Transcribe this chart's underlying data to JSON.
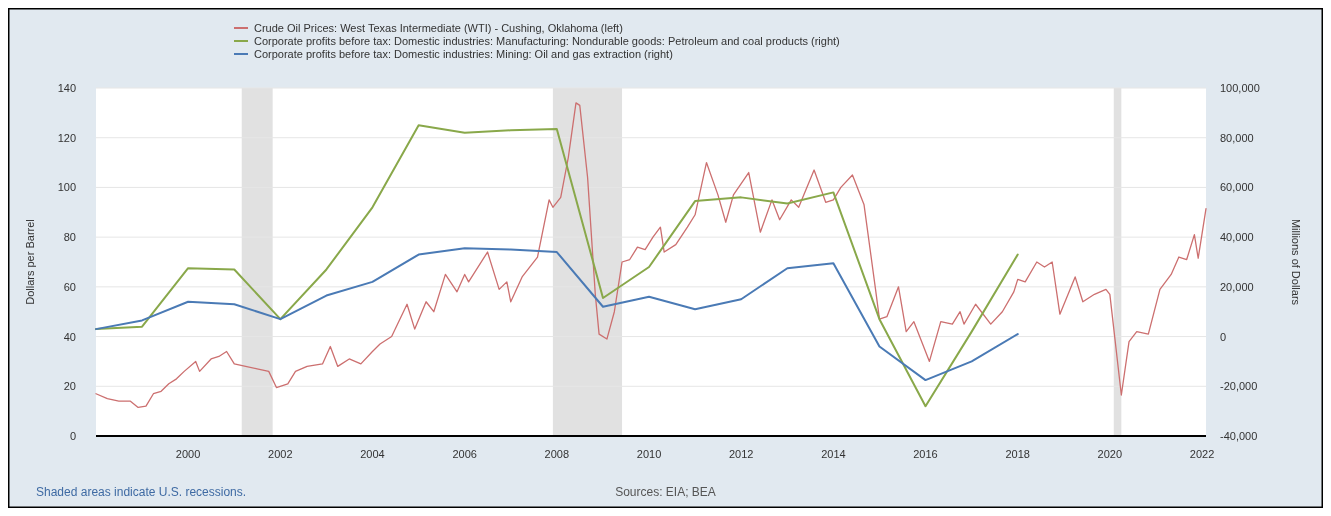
{
  "chart_data": {
    "type": "line",
    "ylabel": "Dollars per Barrel",
    "y2label": "Millions of Dollars",
    "xlim": [
      "1998-01",
      "2022-02"
    ],
    "xticks": [
      {
        "value": "2000",
        "label": "2000"
      },
      {
        "value": "2002",
        "label": "2002"
      },
      {
        "value": "2004",
        "label": "2004"
      },
      {
        "value": "2006",
        "label": "2006"
      },
      {
        "value": "2008",
        "label": "2008"
      },
      {
        "value": "2010",
        "label": "2010"
      },
      {
        "value": "2012",
        "label": "2012"
      },
      {
        "value": "2014",
        "label": "2014"
      },
      {
        "value": "2016",
        "label": "2016"
      },
      {
        "value": "2018",
        "label": "2018"
      },
      {
        "value": "2020",
        "label": "2020"
      },
      {
        "value": "2022",
        "label": "2022"
      }
    ],
    "ylim": [
      0,
      140
    ],
    "yticks": [
      0,
      20,
      40,
      60,
      80,
      100,
      120,
      140
    ],
    "y2lim": [
      -40000,
      100000
    ],
    "y2ticks": [
      {
        "value": -40000,
        "label": "-40,000"
      },
      {
        "value": -20000,
        "label": "-20,000"
      },
      0,
      {
        "value": 20000,
        "label": "20,000"
      },
      {
        "value": 40000,
        "label": "40,000"
      },
      {
        "value": 60000,
        "label": "60,000"
      },
      {
        "value": 80000,
        "label": "80,000"
      },
      {
        "value": 100000,
        "label": "100,000"
      }
    ],
    "grid": "y",
    "legend": "top",
    "line_style": "solid",
    "marker": "none",
    "bands": [
      {
        "axis": "x",
        "from": "2001-03",
        "to": "2001-11",
        "color": "#e1e1e1"
      },
      {
        "axis": "x",
        "from": "2007-12",
        "to": "2009-06",
        "color": "#e1e1e1"
      },
      {
        "axis": "x",
        "from": "2020-02",
        "to": "2020-04",
        "color": "#e1e1e1"
      }
    ],
    "annotations": [
      "Shaded areas indicate U.S. recessions.",
      "Sources: EIA; BEA"
    ],
    "series": [
      {
        "name": "Crude Oil Prices: West Texas Intermediate (WTI) - Cushing, Oklahoma (left)",
        "color": "#cc6f6f",
        "x": [
          "1998-01",
          "1998-04",
          "1998-07",
          "1998-10",
          "1998-12",
          "1999-02",
          "1999-04",
          "1999-06",
          "1999-08",
          "1999-10",
          "1999-12",
          "2000-03",
          "2000-04",
          "2000-07",
          "2000-09",
          "2000-11",
          "2001-01",
          "2001-04",
          "2001-07",
          "2001-10",
          "2001-12",
          "2002-03",
          "2002-05",
          "2002-08",
          "2002-12",
          "2003-02",
          "2003-04",
          "2003-07",
          "2003-10",
          "2004-01",
          "2004-03",
          "2004-06",
          "2004-10",
          "2004-12",
          "2005-03",
          "2005-05",
          "2005-08",
          "2005-11",
          "2006-01",
          "2006-02",
          "2006-07",
          "2006-10",
          "2006-12",
          "2007-01",
          "2007-04",
          "2007-08",
          "2007-11",
          "2007-12",
          "2008-02",
          "2008-04",
          "2008-06",
          "2008-07",
          "2008-09",
          "2008-11",
          "2008-12",
          "2009-02",
          "2009-04",
          "2009-06",
          "2009-08",
          "2009-10",
          "2009-12",
          "2010-02",
          "2010-04",
          "2010-05",
          "2010-08",
          "2010-11",
          "2011-01",
          "2011-04",
          "2011-07",
          "2011-09",
          "2011-11",
          "2012-03",
          "2012-06",
          "2012-09",
          "2012-11",
          "2013-02",
          "2013-04",
          "2013-08",
          "2013-11",
          "2014-01",
          "2014-03",
          "2014-06",
          "2014-09",
          "2014-12",
          "2015-01",
          "2015-03",
          "2015-06",
          "2015-08",
          "2015-10",
          "2016-02",
          "2016-05",
          "2016-08",
          "2016-10",
          "2016-11",
          "2017-02",
          "2017-06",
          "2017-09",
          "2017-12",
          "2018-01",
          "2018-03",
          "2018-06",
          "2018-08",
          "2018-10",
          "2018-12",
          "2019-04",
          "2019-06",
          "2019-09",
          "2019-12",
          "2020-01",
          "2020-04",
          "2020-06",
          "2020-08",
          "2020-11",
          "2021-02",
          "2021-05",
          "2021-07",
          "2021-09",
          "2021-11",
          "2021-12",
          "2022-02"
        ],
        "values": [
          17,
          15,
          14,
          14,
          11.5,
          12,
          17,
          18,
          21,
          23,
          26,
          30,
          26,
          31,
          32,
          34,
          29,
          28,
          27,
          26,
          19.5,
          21,
          26,
          28,
          29,
          36,
          28,
          31,
          29,
          34,
          37,
          40,
          53,
          43,
          54,
          50,
          65,
          58,
          65,
          62,
          74,
          59,
          62,
          54,
          64,
          72,
          95,
          92,
          96,
          112,
          134,
          133,
          104,
          57,
          41,
          39,
          50,
          70,
          71,
          76,
          75,
          80,
          84,
          74,
          77,
          84,
          89,
          110,
          97,
          86,
          97,
          106,
          82,
          95,
          87,
          95,
          92,
          107,
          94,
          95,
          100,
          105,
          93,
          59,
          47,
          48,
          60,
          42,
          46,
          30,
          46,
          45,
          50,
          45,
          53,
          45,
          50,
          58,
          63,
          62,
          70,
          68,
          70,
          49,
          64,
          54,
          57,
          59,
          57,
          16.5,
          38,
          42,
          41,
          59,
          65,
          72,
          71,
          81,
          71.5,
          91.5
        ]
      },
      {
        "name": "Corporate profits before tax: Domestic industries: Manufacturing: Nondurable goods: Petroleum and coal products (right)",
        "color": "#89a84a",
        "axis": "y2",
        "x": [
          "1998",
          "1999",
          "2000",
          "2001",
          "2002",
          "2003",
          "2004",
          "2005",
          "2006",
          "2007",
          "2008",
          "2009",
          "2010",
          "2011",
          "2012",
          "2013",
          "2014",
          "2015",
          "2016",
          "2017",
          "2018"
        ],
        "values": [
          3000,
          4000,
          27500,
          27000,
          7000,
          27000,
          52000,
          85000,
          82000,
          83000,
          83500,
          15500,
          28000,
          54500,
          56000,
          53500,
          58000,
          7000,
          -28000,
          2000,
          33000
        ]
      },
      {
        "name": "Corporate profits before tax: Domestic industries: Mining: Oil and gas extraction (right)",
        "color": "#4a7ab5",
        "axis": "y2",
        "x": [
          "1998",
          "1999",
          "2000",
          "2001",
          "2002",
          "2003",
          "2004",
          "2005",
          "2006",
          "2007",
          "2008",
          "2009",
          "2010",
          "2011",
          "2012",
          "2013",
          "2014",
          "2015",
          "2016",
          "2017",
          "2018"
        ],
        "values": [
          3000,
          6500,
          14000,
          13000,
          7000,
          16500,
          22000,
          33000,
          35500,
          35000,
          34000,
          12000,
          16000,
          11000,
          15000,
          27500,
          29500,
          -4000,
          -17500,
          -10000,
          1000
        ]
      }
    ]
  }
}
